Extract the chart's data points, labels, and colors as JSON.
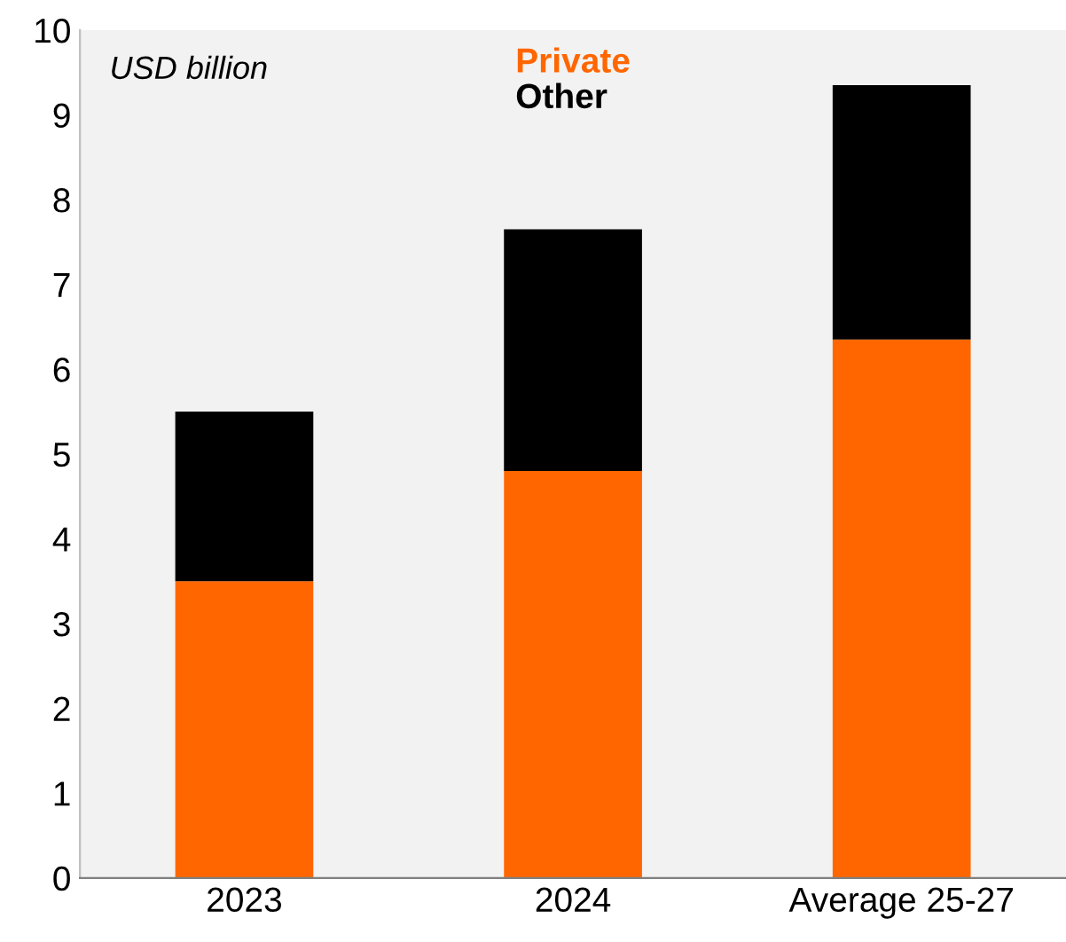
{
  "chart_data": {
    "type": "bar",
    "stacked": true,
    "categories": [
      "2023",
      "2024",
      "Average 25-27"
    ],
    "series": [
      {
        "name": "Private",
        "color": "#ff6600",
        "values": [
          3.5,
          4.8,
          6.35
        ]
      },
      {
        "name": "Other",
        "color": "#000000",
        "values": [
          2.0,
          2.85,
          3.0
        ]
      }
    ],
    "ylim": [
      0,
      10
    ],
    "yticks": [
      0,
      1,
      2,
      3,
      4,
      5,
      6,
      7,
      8,
      9,
      10
    ],
    "annotations": [
      "USD billion"
    ],
    "legend": "top",
    "grid": false
  }
}
